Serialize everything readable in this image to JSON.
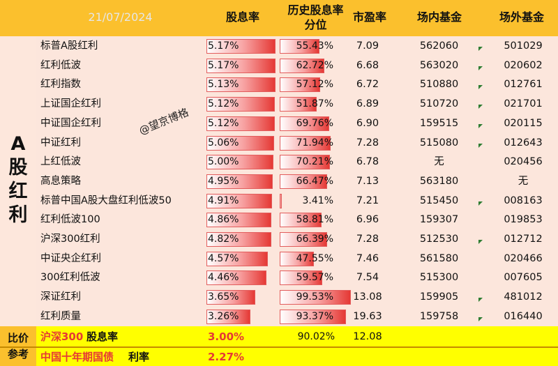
{
  "header": {
    "date": "21/07/2024",
    "col_yield": "股息率",
    "col_percentile_line1": "历史股息率",
    "col_percentile_line2": "分位",
    "col_pe": "市盈率",
    "col_onmarket": "场内基金",
    "col_offmarket": "场外基金"
  },
  "category": [
    "A",
    "股",
    "红",
    "利"
  ],
  "watermark": "@望京博格",
  "rows": [
    {
      "name": "标普A股红利",
      "yield": "5.17%",
      "yield_value": 5.17,
      "percentile": "55.43%",
      "percentile_value": 55.43,
      "pe": "7.09",
      "on": "562060",
      "off": "501029",
      "flag": true
    },
    {
      "name": "红利低波",
      "yield": "5.17%",
      "yield_value": 5.17,
      "percentile": "62.72%",
      "percentile_value": 62.72,
      "pe": "6.68",
      "on": "563020",
      "off": "020602",
      "flag": true
    },
    {
      "name": "红利指数",
      "yield": "5.13%",
      "yield_value": 5.13,
      "percentile": "57.12%",
      "percentile_value": 57.12,
      "pe": "6.72",
      "on": "510880",
      "off": "012761",
      "flag": true
    },
    {
      "name": "上证国企红利",
      "yield": "5.12%",
      "yield_value": 5.12,
      "percentile": "51.87%",
      "percentile_value": 51.87,
      "pe": "6.89",
      "on": "510720",
      "off": "021701",
      "flag": true
    },
    {
      "name": "中证国企红利",
      "yield": "5.12%",
      "yield_value": 5.12,
      "percentile": "69.76%",
      "percentile_value": 69.76,
      "pe": "6.90",
      "on": "159515",
      "off": "020115",
      "flag": true
    },
    {
      "name": "中证红利",
      "yield": "5.06%",
      "yield_value": 5.06,
      "percentile": "71.94%",
      "percentile_value": 71.94,
      "pe": "7.28",
      "on": "515080",
      "off": "012643",
      "flag": true
    },
    {
      "name": "上红低波",
      "yield": "5.00%",
      "yield_value": 5.0,
      "percentile": "70.21%",
      "percentile_value": 70.21,
      "pe": "6.78",
      "on": "无",
      "off": "020456",
      "flag": false
    },
    {
      "name": "高息策略",
      "yield": "4.95%",
      "yield_value": 4.95,
      "percentile": "66.47%",
      "percentile_value": 66.47,
      "pe": "7.13",
      "on": "563180",
      "off": "无",
      "flag": false
    },
    {
      "name": "标普中国A股大盘红利低波50",
      "yield": "4.91%",
      "yield_value": 4.91,
      "percentile": "3.41%",
      "percentile_value": 3.41,
      "pe": "7.21",
      "on": "515450",
      "off": "008163",
      "flag": true
    },
    {
      "name": "红利低波100",
      "yield": "4.86%",
      "yield_value": 4.86,
      "percentile": "58.81%",
      "percentile_value": 58.81,
      "pe": "6.96",
      "on": "159307",
      "off": "019853",
      "flag": false
    },
    {
      "name": "沪深300红利",
      "yield": "4.82%",
      "yield_value": 4.82,
      "percentile": "66.39%",
      "percentile_value": 66.39,
      "pe": "7.28",
      "on": "512530",
      "off": "012712",
      "flag": true
    },
    {
      "name": "中证央企红利",
      "yield": "4.57%",
      "yield_value": 4.57,
      "percentile": "47.55%",
      "percentile_value": 47.55,
      "pe": "7.46",
      "on": "561580",
      "off": "020466",
      "flag": false
    },
    {
      "name": "300红利低波",
      "yield": "4.46%",
      "yield_value": 4.46,
      "percentile": "59.57%",
      "percentile_value": 59.57,
      "pe": "7.54",
      "on": "515300",
      "off": "007605",
      "flag": false
    },
    {
      "name": "深证红利",
      "yield": "3.65%",
      "yield_value": 3.65,
      "percentile": "99.53%",
      "percentile_value": 99.53,
      "pe": "13.08",
      "on": "159905",
      "off": "481012",
      "flag": true
    },
    {
      "name": "红利质量",
      "yield": "3.26%",
      "yield_value": 3.26,
      "percentile": "93.37%",
      "percentile_value": 93.37,
      "pe": "19.63",
      "on": "159758",
      "off": "016440",
      "flag": true
    }
  ],
  "footer": {
    "category": [
      "比价",
      "参考"
    ],
    "row1_name": "沪深300",
    "row1_suffix": "股息率",
    "row1_yield": "3.00%",
    "row1_percentile": "90.02%",
    "row1_pe": "12.08",
    "row2_name": "中国十年期国债",
    "row2_suffix": "利率",
    "row2_yield": "2.27%"
  },
  "colors": {
    "header": "#fbc02d",
    "body": "#fce6dc",
    "footer": "#ffff00",
    "bar": "#e53935",
    "flag": "#2e7d32"
  }
}
